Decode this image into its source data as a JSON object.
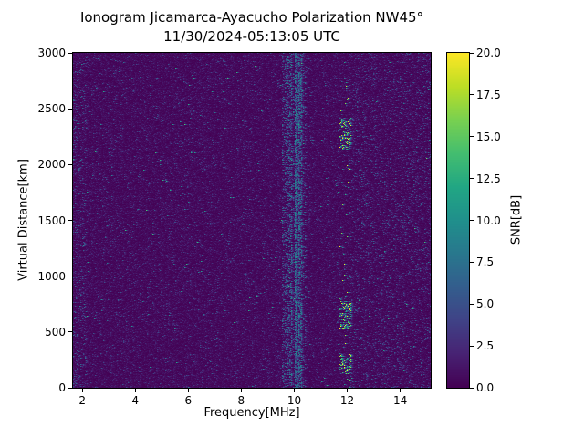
{
  "chart_data": {
    "type": "heatmap",
    "title": "Ionogram Jicamarca-Ayacucho Polarization NW45°",
    "subtitle": "11/30/2024-05:13:05 UTC",
    "xlabel": "Frequency[MHz]",
    "ylabel": "Virtual Distance[km]",
    "colorbar_label": "SNR[dB]",
    "colormap": "viridis",
    "xlim": [
      1.65,
      15.15
    ],
    "ylim": [
      0,
      3000
    ],
    "clim": [
      0,
      20
    ],
    "x_tick_values": [
      2,
      4,
      6,
      8,
      10,
      12,
      14
    ],
    "x_tick_labels": [
      "2",
      "4",
      "6",
      "8",
      "10",
      "12",
      "14"
    ],
    "y_tick_values": [
      0,
      500,
      1000,
      1500,
      2000,
      2500,
      3000
    ],
    "y_tick_labels": [
      "0",
      "500",
      "1000",
      "1500",
      "2000",
      "2500",
      "3000"
    ],
    "colorbar_tick_values": [
      0,
      2.5,
      5,
      7.5,
      10,
      12.5,
      15,
      17.5,
      20
    ],
    "colorbar_tick_labels": [
      "0.0",
      "2.5",
      "5.0",
      "7.5",
      "10.0",
      "12.5",
      "15.0",
      "17.5",
      "20.0"
    ],
    "description": "Ionogram SNR heatmap dominated by low-level background noise (0-2 dB, dark purple) with sparse speckle up to ~8 dB, strong vertical radio-interference stripes near 9.8-10.2 MHz spanning all virtual distances, and bright echo clusters (10-20 dB, green/yellow) near 11.8-12 MHz at virtual distances around 200 km, 600-700 km and 2200-2300 km.",
    "noise_model": {
      "seed": 20241130,
      "background_mean_db": 0.55,
      "speckle_probability": 0.025,
      "speckle_max_db": 5,
      "bright_probability": 0.0015,
      "bright_min_db": 5,
      "bright_extra_db": 8,
      "horizontal_streak_persistence": 0.45,
      "bands": [
        {
          "name": "interference-band-10mhz",
          "f_range": [
            9.55,
            10.45
          ],
          "probability": 0.16,
          "min_db": 1.5,
          "extra_db": 6.5,
          "striped": true
        },
        {
          "name": "interference-line-9.8mhz",
          "f_range": [
            9.72,
            9.9
          ],
          "probability": 0.4,
          "min_db": 2,
          "extra_db": 8,
          "striped": true
        },
        {
          "name": "interference-line-10.1mhz",
          "f_range": [
            10.02,
            10.3
          ],
          "probability": 0.45,
          "min_db": 2,
          "extra_db": 8,
          "striped": true
        },
        {
          "name": "echo-cluster-12mhz",
          "f_range": [
            11.7,
            12.15
          ],
          "probability": 0.02,
          "min_db": 6,
          "extra_db": 14,
          "striped": false,
          "d_ranges": [
            [
              120,
              300
            ],
            [
              520,
              780
            ],
            [
              2130,
              2420
            ]
          ],
          "d_probability": 0.22
        },
        {
          "name": "right-side-speckle",
          "f_range": [
            12.1,
            15.2
          ],
          "probability": 0.05,
          "min_db": 1.0,
          "extra_db": 5.5,
          "striped": false
        },
        {
          "name": "left-edge-speckle",
          "f_range": [
            1.65,
            2.15
          ],
          "probability": 0.07,
          "min_db": 1.0,
          "extra_db": 6.5,
          "striped": false
        }
      ]
    }
  }
}
